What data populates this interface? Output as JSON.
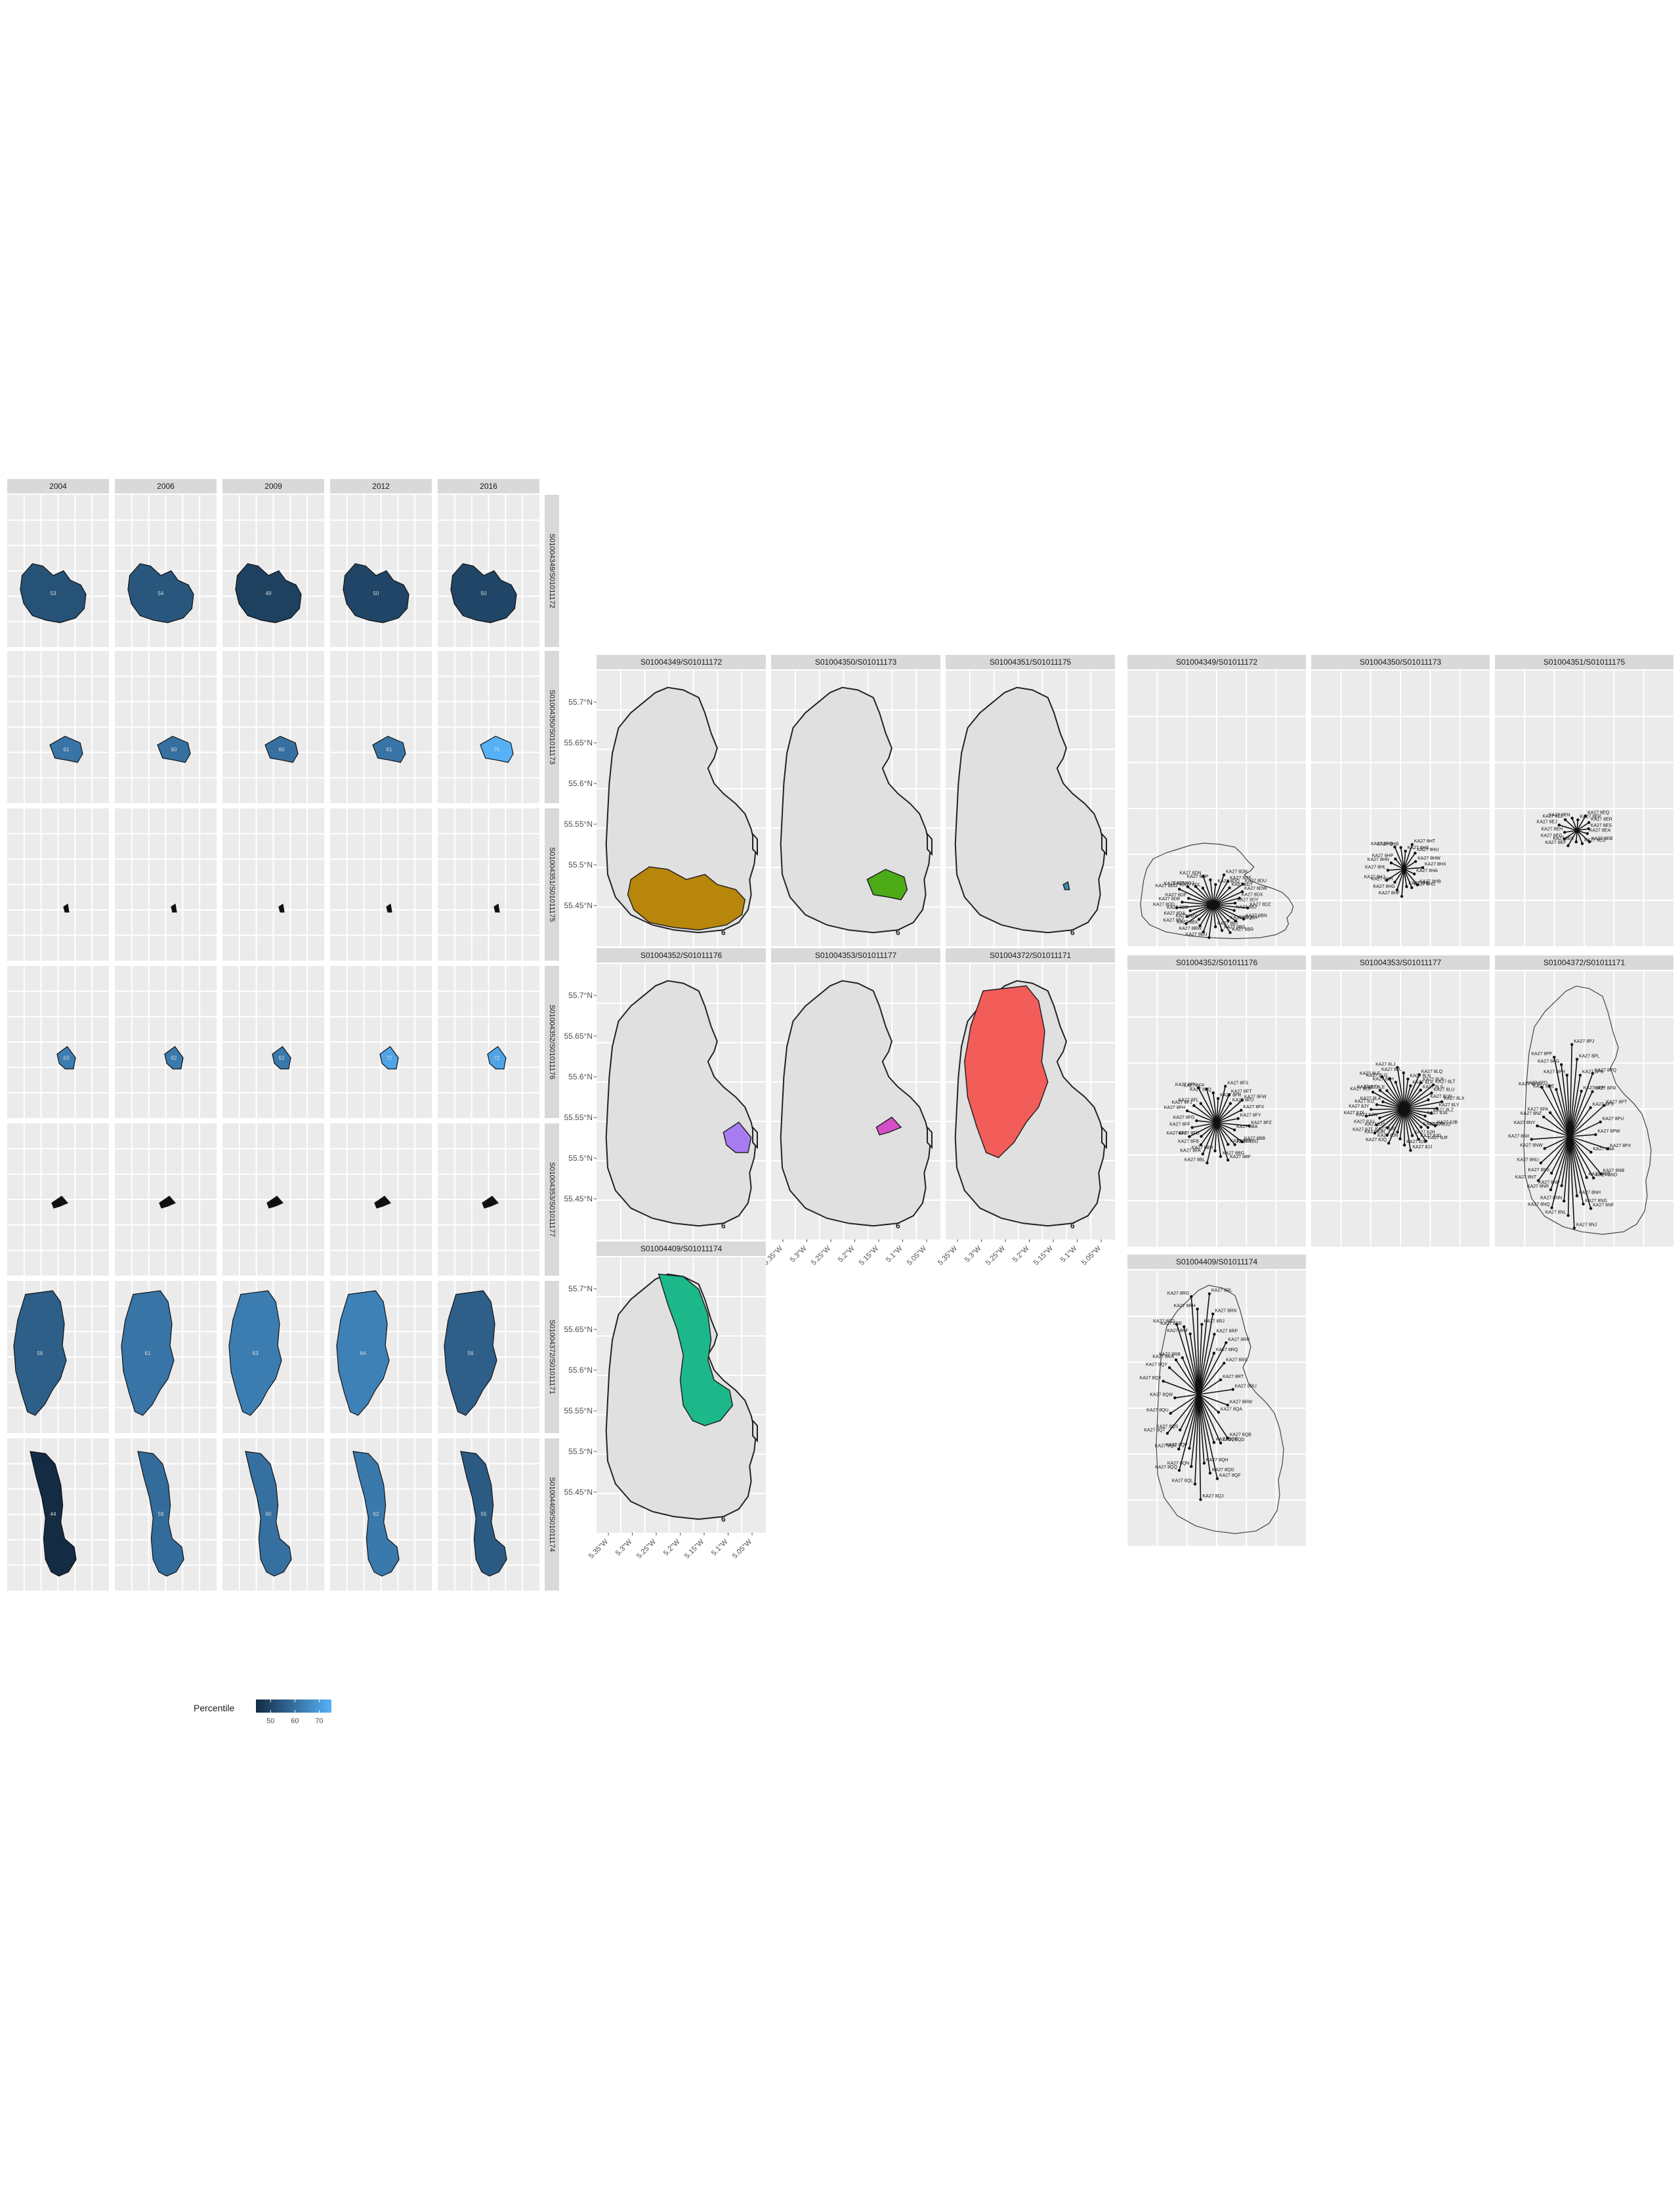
{
  "years": [
    "2004",
    "2006",
    "2009",
    "2012",
    "2016"
  ],
  "zones": [
    "S01004349/S01011172",
    "S01004350/S01011173",
    "S01004351/S01011175",
    "S01004352/S01011176",
    "S01004353/S01011177",
    "S01004372/S01011171",
    "S01004409/S01011174"
  ],
  "grid_panel_values": [
    [
      "53",
      "54",
      "49",
      "50",
      "50"
    ],
    [
      "61",
      "60",
      "60",
      "61",
      "75"
    ],
    [
      "",
      "",
      "",
      "",
      ""
    ],
    [
      "63",
      "62",
      "62",
      "72",
      "72"
    ],
    [
      "",
      "",
      "",
      "",
      ""
    ],
    [
      "56",
      "61",
      "63",
      "64",
      "56"
    ],
    [
      "44",
      "59",
      "60",
      "62",
      "55"
    ]
  ],
  "grid_panel_percentiles": [
    [
      53,
      54,
      49,
      50,
      50
    ],
    [
      61,
      60,
      60,
      61,
      75
    ],
    [
      null,
      null,
      null,
      null,
      null
    ],
    [
      63,
      62,
      62,
      72,
      72
    ],
    [
      null,
      null,
      null,
      null,
      null
    ],
    [
      56,
      61,
      63,
      64,
      56
    ],
    [
      44,
      59,
      60,
      62,
      55
    ]
  ],
  "legend": {
    "title": "Percentile",
    "ticks": [
      "50",
      "60",
      "70"
    ],
    "tick_values": [
      50,
      60,
      70
    ],
    "range": [
      44,
      75
    ],
    "low_color": "#132b43",
    "high_color": "#56b1f7"
  },
  "zone_colors": [
    "#b8860b",
    "#4dab18",
    "#3a8fb7",
    "#a77cf0",
    "#d64fc9",
    "#f25d5a",
    "#1cb88a"
  ],
  "lat_labels": [
    "55.7°N",
    "55.65°N",
    "55.6°N",
    "55.55°N",
    "55.5°N",
    "55.45°N"
  ],
  "lon_labels": [
    "5.35°W",
    "5.3°W",
    "5.25°W",
    "5.2°W",
    "5.15°W",
    "5.1°W",
    "5.05°W"
  ],
  "map_symbol": "6",
  "point_labels": [
    [
      "KA27 8BJ",
      "KA27 8BN",
      "KA27 8BP",
      "KA27 8BQ",
      "KA27 8BR",
      "KA27 8BS",
      "KA27 8BT",
      "KA27 8BU",
      "KA27 8BW",
      "KA27 8BX",
      "KA27 8BY",
      "KA27 8BZ",
      "KA27 8DA",
      "KA27 8DB",
      "KA27 8DD",
      "KA27 8DE",
      "KA27 8DF",
      "KA27 8DG",
      "KA27 8DH",
      "KA27 8DJ",
      "KA27 8DL",
      "KA27 8DN",
      "KA27 8DP",
      "KA27 8DQ",
      "KA27 8DR",
      "KA27 8DS",
      "KA27 8DT",
      "KA27 8DU",
      "KA27 8DW",
      "KA27 8DX",
      "KA27 8DY",
      "KA27 8DZ"
    ],
    [
      "KA27 8HA",
      "KA27 8HB",
      "KA27 8HD",
      "KA27 8HE",
      "KA27 8HF",
      "KA27 8HG",
      "KA27 8HH",
      "KA27 8HJ",
      "KA27 8HL",
      "KA27 8HN",
      "KA27 8HP",
      "KA27 8HQ",
      "KA27 8HR",
      "KA27 8HS",
      "KA27 8HT",
      "KA27 8HU",
      "KA27 8HW",
      "KA27 8HX"
    ],
    [
      "KA27 8EA",
      "KA27 8EB",
      "KA27 8ED",
      "KA27 8EE",
      "KA27 8EF",
      "KA27 8EG",
      "KA27 8EH",
      "KA27 8EJ",
      "KA27 8EL",
      "KA27 8EN",
      "KA27 8EP",
      "KA27 8EQ",
      "KA27 8ER",
      "KA27 8ES"
    ],
    [
      "KA27 8BA",
      "KA27 8BB",
      "KA27 8BD",
      "KA27 8BE",
      "KA27 8BF",
      "KA27 8BG",
      "KA27 8BH",
      "KA27 8BL",
      "KA27 8FA",
      "KA27 8FB",
      "KA27 8FD",
      "KA27 8FE",
      "KA27 8FF",
      "KA27 8FG",
      "KA27 8FH",
      "KA27 8FJ",
      "KA27 8FL",
      "KA27 8FN",
      "KA27 8FP",
      "KA27 8FQ",
      "KA27 8FR",
      "KA27 8FS",
      "KA27 8FT",
      "KA27 8FU",
      "KA27 8FW",
      "KA27 8FX",
      "KA27 8FY",
      "KA27 8FZ"
    ],
    [
      "KA27 8JA",
      "KA27 8JB",
      "KA27 8JD",
      "KA27 8JE",
      "KA27 8JF",
      "KA27 8JG",
      "KA27 8JH",
      "KA27 8JJ",
      "KA27 8JL",
      "KA27 8JN",
      "KA27 8JP",
      "KA27 8JQ",
      "KA27 8JR",
      "KA27 8JS",
      "KA27 8JT",
      "KA27 8JU",
      "KA27 8JW",
      "KA27 8JX",
      "KA27 8JY",
      "KA27 8JZ",
      "KA27 8LA",
      "KA27 8LB",
      "KA27 8LD",
      "KA27 8LE",
      "KA27 8LF",
      "KA27 8LG",
      "KA27 8LH",
      "KA27 8LJ",
      "KA27 8LL",
      "KA27 8LN",
      "KA27 8LP",
      "KA27 8LQ",
      "KA27 8LR",
      "KA27 8LS",
      "KA27 8LT",
      "KA27 8LU",
      "KA27 8LW",
      "KA27 8LX",
      "KA27 8LY",
      "KA27 8LZ"
    ],
    [
      "KA27 8NA",
      "KA27 8NB",
      "KA27 8ND",
      "KA27 8NE",
      "KA27 8NF",
      "KA27 8NG",
      "KA27 8NH",
      "KA27 8NJ",
      "KA27 8NL",
      "KA27 8NN",
      "KA27 8NP",
      "KA27 8NQ",
      "KA27 8NR",
      "KA27 8NS",
      "KA27 8NT",
      "KA27 8NU",
      "KA27 8NW",
      "KA27 8NX",
      "KA27 8NY",
      "KA27 8NZ",
      "KA27 8PA",
      "KA27 8PB",
      "KA27 8PD",
      "KA27 8PE",
      "KA27 8PF",
      "KA27 8PG",
      "KA27 8PH",
      "KA27 8PJ",
      "KA27 8PL",
      "KA27 8PN",
      "KA27 8PP",
      "KA27 8PQ",
      "KA27 8PR",
      "KA27 8PS",
      "KA27 8PT",
      "KA27 8PU",
      "KA27 8PW",
      "KA27 8PX"
    ],
    [
      "KA27 8QA",
      "KA27 8QB",
      "KA27 8QD",
      "KA27 8QE",
      "KA27 8QF",
      "KA27 8QG",
      "KA27 8QH",
      "KA27 8QJ",
      "KA27 8QL",
      "KA27 8QN",
      "KA27 8QP",
      "KA27 8QQ",
      "KA27 8QR",
      "KA27 8QS",
      "KA27 8QT",
      "KA27 8QU",
      "KA27 8QW",
      "KA27 8QX",
      "KA27 8QY",
      "KA27 8RA",
      "KA27 8RB",
      "KA27 8RD",
      "KA27 8RE",
      "KA27 8RF",
      "KA27 8RG",
      "KA27 8RH",
      "KA27 8RJ",
      "KA27 8RL",
      "KA27 8RN",
      "KA27 8RP",
      "KA27 8RQ",
      "KA27 8RR",
      "KA27 8RS",
      "KA27 8RT",
      "KA27 8RU",
      "KA27 8RW"
    ]
  ]
}
